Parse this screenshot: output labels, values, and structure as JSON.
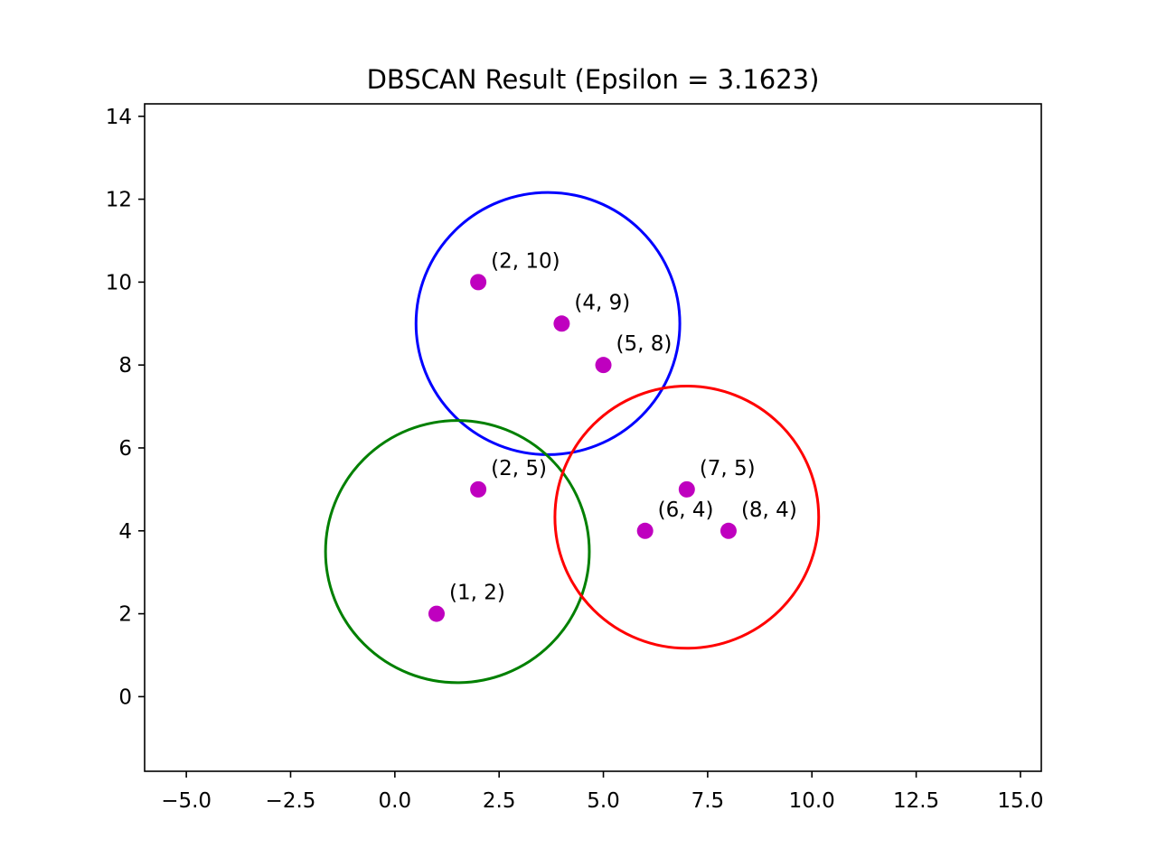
{
  "chart_data": {
    "type": "scatter",
    "title": "DBSCAN Result (Epsilon = 3.1623)",
    "xlabel": "",
    "ylabel": "",
    "xlim": [
      -6.0,
      15.5
    ],
    "ylim": [
      -1.8,
      14.3
    ],
    "xticks": [
      -5.0,
      -2.5,
      0.0,
      2.5,
      5.0,
      7.5,
      10.0,
      12.5,
      15.0
    ],
    "xtick_labels": [
      "−5.0",
      "−2.5",
      "0.0",
      "2.5",
      "5.0",
      "7.5",
      "10.0",
      "12.5",
      "15.0"
    ],
    "yticks": [
      0,
      2,
      4,
      6,
      8,
      10,
      12,
      14
    ],
    "ytick_labels": [
      "0",
      "2",
      "4",
      "6",
      "8",
      "10",
      "12",
      "14"
    ],
    "grid": false,
    "point_color": "#bf00bf",
    "points": [
      {
        "x": 2,
        "y": 10,
        "label": "(2, 10)"
      },
      {
        "x": 4,
        "y": 9,
        "label": "(4, 9)"
      },
      {
        "x": 5,
        "y": 8,
        "label": "(5, 8)"
      },
      {
        "x": 2,
        "y": 5,
        "label": "(2, 5)"
      },
      {
        "x": 1,
        "y": 2,
        "label": "(1, 2)"
      },
      {
        "x": 7,
        "y": 5,
        "label": "(7, 5)"
      },
      {
        "x": 6,
        "y": 4,
        "label": "(6, 4)"
      },
      {
        "x": 8,
        "y": 4,
        "label": "(8, 4)"
      }
    ],
    "circles": [
      {
        "cx": 3.67,
        "cy": 9.0,
        "r": 3.1623,
        "color": "#0000ff"
      },
      {
        "cx": 1.5,
        "cy": 3.5,
        "r": 3.1623,
        "color": "#008000"
      },
      {
        "cx": 7.0,
        "cy": 4.33,
        "r": 3.1623,
        "color": "#ff0000"
      }
    ]
  }
}
